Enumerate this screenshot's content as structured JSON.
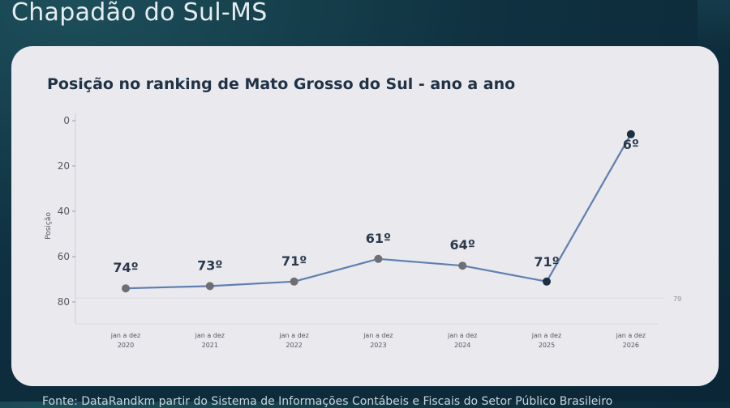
{
  "header": {
    "title": "Chapadão do Sul-MS"
  },
  "footer": {
    "text": "Fonte: DataRandkm partir do Sistema de Informações Contábeis e Fiscais do Setor Público Brasileiro"
  },
  "chart_data": {
    "type": "line",
    "title": "Posição no ranking de Mato Grosso do Sul - ano a ano",
    "ylabel": "Posição",
    "xlabel": "",
    "ylim": [
      0,
      80
    ],
    "y_inverted": true,
    "yticks": [
      0,
      20,
      40,
      60,
      80
    ],
    "reference_value": 79,
    "categories": [
      {
        "line1": "jan a dez",
        "line2": "2020"
      },
      {
        "line1": "jan a dez",
        "line2": "2021"
      },
      {
        "line1": "jan a dez",
        "line2": "2022"
      },
      {
        "line1": "jan a dez",
        "line2": "2023"
      },
      {
        "line1": "jan a dez",
        "line2": "2024"
      },
      {
        "line1": "jan a dez",
        "line2": "2025"
      },
      {
        "line1": "jan a dez",
        "line2": "2026"
      }
    ],
    "values": [
      74,
      73,
      71,
      61,
      64,
      71,
      6
    ],
    "labels": [
      "74º",
      "73º",
      "71º",
      "61º",
      "64º",
      "71º",
      "6º"
    ],
    "colors": {
      "line": "#5f7fb0",
      "marker": "#6e6e73",
      "marker_highlight": "#1d2f40",
      "label": "#2b3a4c"
    },
    "grid": false
  }
}
